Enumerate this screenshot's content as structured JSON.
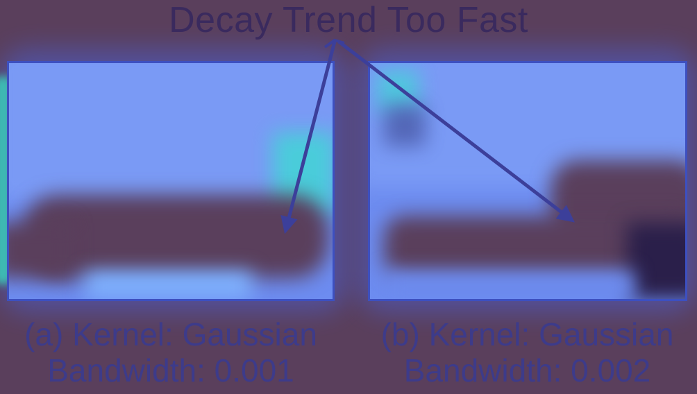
{
  "annotation": {
    "title": "Decay Trend Too Fast"
  },
  "panels": [
    {
      "caption_line1": "(a) Kernel: Gaussian",
      "caption_line2": "Bandwidth: 0.001"
    },
    {
      "caption_line1": "(b) Kernel: Gaussian",
      "caption_line2": "Bandwidth: 0.002"
    }
  ],
  "colors": {
    "background": "#5a3f5c",
    "panel_fill": "#6d8cf0",
    "panel_border": "#3d50c0",
    "arrow": "#3c3f9a",
    "text": "#3a2a5e"
  }
}
